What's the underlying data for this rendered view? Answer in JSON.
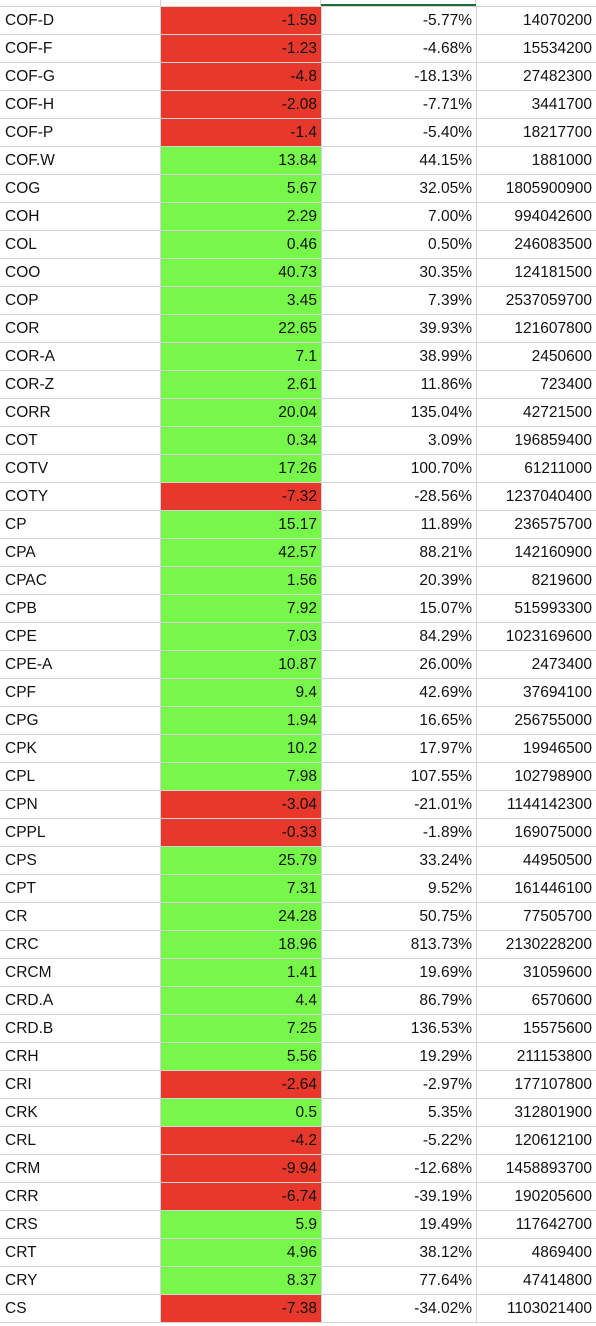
{
  "colors": {
    "negative_fill": "#e8382b",
    "positive_fill": "#78f74b",
    "grid": "#d4d4d4",
    "selection": "#1e6b3a"
  },
  "rows": [
    {
      "symbol": "COF-D",
      "change": "-1.59",
      "pct": "-5.77%",
      "volume": "14070200",
      "status": "neg"
    },
    {
      "symbol": "COF-F",
      "change": "-1.23",
      "pct": "-4.68%",
      "volume": "15534200",
      "status": "neg"
    },
    {
      "symbol": "COF-G",
      "change": "-4.8",
      "pct": "-18.13%",
      "volume": "27482300",
      "status": "neg"
    },
    {
      "symbol": "COF-H",
      "change": "-2.08",
      "pct": "-7.71%",
      "volume": "3441700",
      "status": "neg"
    },
    {
      "symbol": "COF-P",
      "change": "-1.4",
      "pct": "-5.40%",
      "volume": "18217700",
      "status": "neg"
    },
    {
      "symbol": "COF.W",
      "change": "13.84",
      "pct": "44.15%",
      "volume": "1881000",
      "status": "pos"
    },
    {
      "symbol": "COG",
      "change": "5.67",
      "pct": "32.05%",
      "volume": "1805900900",
      "status": "pos"
    },
    {
      "symbol": "COH",
      "change": "2.29",
      "pct": "7.00%",
      "volume": "994042600",
      "status": "pos"
    },
    {
      "symbol": "COL",
      "change": "0.46",
      "pct": "0.50%",
      "volume": "246083500",
      "status": "pos"
    },
    {
      "symbol": "COO",
      "change": "40.73",
      "pct": "30.35%",
      "volume": "124181500",
      "status": "pos"
    },
    {
      "symbol": "COP",
      "change": "3.45",
      "pct": "7.39%",
      "volume": "2537059700",
      "status": "pos"
    },
    {
      "symbol": "COR",
      "change": "22.65",
      "pct": "39.93%",
      "volume": "121607800",
      "status": "pos"
    },
    {
      "symbol": "COR-A",
      "change": "7.1",
      "pct": "38.99%",
      "volume": "2450600",
      "status": "pos"
    },
    {
      "symbol": "COR-Z",
      "change": "2.61",
      "pct": "11.86%",
      "volume": "723400",
      "status": "pos"
    },
    {
      "symbol": "CORR",
      "change": "20.04",
      "pct": "135.04%",
      "volume": "42721500",
      "status": "pos"
    },
    {
      "symbol": "COT",
      "change": "0.34",
      "pct": "3.09%",
      "volume": "196859400",
      "status": "pos"
    },
    {
      "symbol": "COTV",
      "change": "17.26",
      "pct": "100.70%",
      "volume": "61211000",
      "status": "pos"
    },
    {
      "symbol": "COTY",
      "change": "-7.32",
      "pct": "-28.56%",
      "volume": "1237040400",
      "status": "neg"
    },
    {
      "symbol": "CP",
      "change": "15.17",
      "pct": "11.89%",
      "volume": "236575700",
      "status": "pos"
    },
    {
      "symbol": "CPA",
      "change": "42.57",
      "pct": "88.21%",
      "volume": "142160900",
      "status": "pos"
    },
    {
      "symbol": "CPAC",
      "change": "1.56",
      "pct": "20.39%",
      "volume": "8219600",
      "status": "pos"
    },
    {
      "symbol": "CPB",
      "change": "7.92",
      "pct": "15.07%",
      "volume": "515993300",
      "status": "pos"
    },
    {
      "symbol": "CPE",
      "change": "7.03",
      "pct": "84.29%",
      "volume": "1023169600",
      "status": "pos"
    },
    {
      "symbol": "CPE-A",
      "change": "10.87",
      "pct": "26.00%",
      "volume": "2473400",
      "status": "pos"
    },
    {
      "symbol": "CPF",
      "change": "9.4",
      "pct": "42.69%",
      "volume": "37694100",
      "status": "pos"
    },
    {
      "symbol": "CPG",
      "change": "1.94",
      "pct": "16.65%",
      "volume": "256755000",
      "status": "pos"
    },
    {
      "symbol": "CPK",
      "change": "10.2",
      "pct": "17.97%",
      "volume": "19946500",
      "status": "pos"
    },
    {
      "symbol": "CPL",
      "change": "7.98",
      "pct": "107.55%",
      "volume": "102798900",
      "status": "pos"
    },
    {
      "symbol": "CPN",
      "change": "-3.04",
      "pct": "-21.01%",
      "volume": "1144142300",
      "status": "neg"
    },
    {
      "symbol": "CPPL",
      "change": "-0.33",
      "pct": "-1.89%",
      "volume": "169075000",
      "status": "neg"
    },
    {
      "symbol": "CPS",
      "change": "25.79",
      "pct": "33.24%",
      "volume": "44950500",
      "status": "pos"
    },
    {
      "symbol": "CPT",
      "change": "7.31",
      "pct": "9.52%",
      "volume": "161446100",
      "status": "pos"
    },
    {
      "symbol": "CR",
      "change": "24.28",
      "pct": "50.75%",
      "volume": "77505700",
      "status": "pos"
    },
    {
      "symbol": "CRC",
      "change": "18.96",
      "pct": "813.73%",
      "volume": "2130228200",
      "status": "pos"
    },
    {
      "symbol": "CRCM",
      "change": "1.41",
      "pct": "19.69%",
      "volume": "31059600",
      "status": "pos"
    },
    {
      "symbol": "CRD.A",
      "change": "4.4",
      "pct": "86.79%",
      "volume": "6570600",
      "status": "pos"
    },
    {
      "symbol": "CRD.B",
      "change": "7.25",
      "pct": "136.53%",
      "volume": "15575600",
      "status": "pos"
    },
    {
      "symbol": "CRH",
      "change": "5.56",
      "pct": "19.29%",
      "volume": "211153800",
      "status": "pos"
    },
    {
      "symbol": "CRI",
      "change": "-2.64",
      "pct": "-2.97%",
      "volume": "177107800",
      "status": "neg"
    },
    {
      "symbol": "CRK",
      "change": "0.5",
      "pct": "5.35%",
      "volume": "312801900",
      "status": "pos"
    },
    {
      "symbol": "CRL",
      "change": "-4.2",
      "pct": "-5.22%",
      "volume": "120612100",
      "status": "neg"
    },
    {
      "symbol": "CRM",
      "change": "-9.94",
      "pct": "-12.68%",
      "volume": "1458893700",
      "status": "neg"
    },
    {
      "symbol": "CRR",
      "change": "-6.74",
      "pct": "-39.19%",
      "volume": "190205600",
      "status": "neg"
    },
    {
      "symbol": "CRS",
      "change": "5.9",
      "pct": "19.49%",
      "volume": "117642700",
      "status": "pos"
    },
    {
      "symbol": "CRT",
      "change": "4.96",
      "pct": "38.12%",
      "volume": "4869400",
      "status": "pos"
    },
    {
      "symbol": "CRY",
      "change": "8.37",
      "pct": "77.64%",
      "volume": "47414800",
      "status": "pos"
    },
    {
      "symbol": "CS",
      "change": "-7.38",
      "pct": "-34.02%",
      "volume": "1103021400",
      "status": "neg"
    }
  ]
}
